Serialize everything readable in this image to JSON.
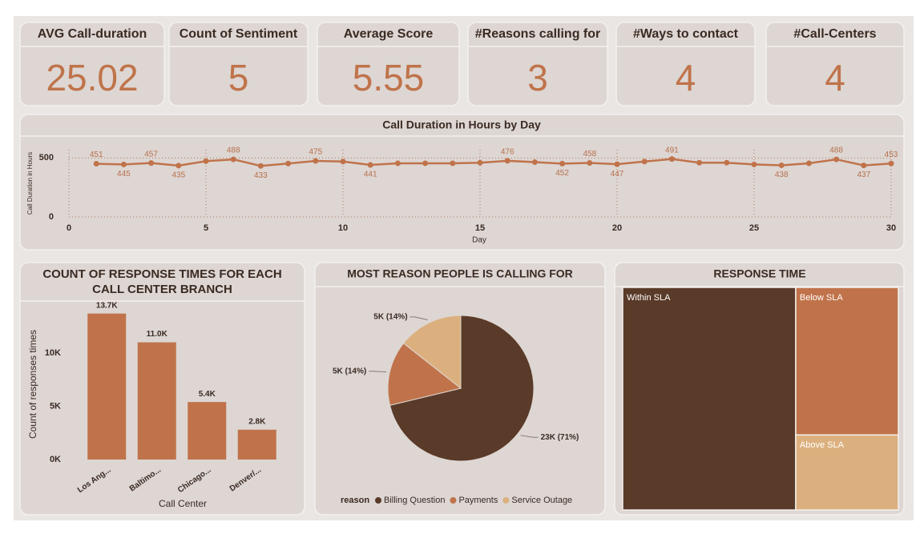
{
  "cards": [
    {
      "title": "AVG Call-duration",
      "value": 25.02
    },
    {
      "title": "Count of Sentiment",
      "value": 5
    },
    {
      "title": "Average Score",
      "value": 5.55
    },
    {
      "title": "#Reasons calling for",
      "value": 3
    },
    {
      "title": "#Ways to contact",
      "value": 4
    },
    {
      "title": "#Call-Centers",
      "value": 4
    }
  ],
  "chart_data": [
    {
      "type": "line",
      "title": "Call Duration in Hours by Day",
      "x_label": "Day",
      "y_label": "Call Duration in Hours",
      "x": [
        1,
        2,
        3,
        4,
        5,
        6,
        7,
        8,
        9,
        10,
        11,
        12,
        13,
        14,
        15,
        16,
        17,
        18,
        19,
        20,
        21,
        22,
        23,
        24,
        25,
        26,
        27,
        28,
        29,
        30
      ],
      "values": [
        451,
        445,
        457,
        435,
        473,
        488,
        433,
        453,
        475,
        470,
        441,
        455,
        455,
        455,
        460,
        476,
        465,
        452,
        458,
        447,
        470,
        491,
        460,
        460,
        445,
        438,
        455,
        488,
        437,
        453
      ],
      "value_labels": [
        "451",
        "445",
        "457",
        "435",
        null,
        "488",
        "433",
        null,
        "475",
        null,
        "441",
        null,
        null,
        null,
        null,
        "476",
        null,
        "452",
        "458",
        "447",
        null,
        "491",
        null,
        null,
        null,
        "438",
        null,
        "488",
        "437",
        "453"
      ],
      "color": "#c0734a",
      "xlim": [
        0,
        30
      ],
      "xticks": [
        0,
        5,
        10,
        15,
        20,
        25,
        30
      ],
      "ylim": [
        0,
        570
      ],
      "yticks": [
        0,
        500
      ],
      "grid": true
    },
    {
      "type": "bar",
      "title": "COUNT OF RESPONSE TIMES FOR EACH CALL CENTER BRANCH",
      "x_label": "Call Center",
      "y_label": "Count of responses times",
      "categories": [
        "Los Ang...",
        "Baltimo...",
        "Chicago...",
        "Denver/..."
      ],
      "values": [
        13700,
        11000,
        5400,
        2800
      ],
      "value_labels": [
        "13.7K",
        "11.0K",
        "5.4K",
        "2.8K"
      ],
      "color": "#c0734a",
      "ylim": [
        0,
        14200
      ],
      "yticks": [
        {
          "value": 0,
          "label": "0K"
        },
        {
          "value": 5000,
          "label": "5K"
        },
        {
          "value": 10000,
          "label": "10K"
        }
      ]
    },
    {
      "type": "pie",
      "title": "MOST REASON PEOPLE IS CALLING FOR",
      "legend_title": "reason",
      "categories": [
        "Billing Question",
        "Payments",
        "Service Outage"
      ],
      "values": [
        22800,
        4600,
        4600
      ],
      "value_labels": [
        "23K (71%)",
        "5K (14%)",
        "5K (14%)"
      ],
      "colors": [
        "#5a3a28",
        "#c0734a",
        "#dcb07e"
      ],
      "legend": "bottom"
    },
    {
      "type": "treemap",
      "title": "RESPONSE TIME",
      "categories": [
        "Within SLA",
        "Below SLA",
        "Above SLA"
      ],
      "values": [
        20650,
        8120,
        4130
      ],
      "colors": [
        "#5a3a28",
        "#c0734a",
        "#dcb07e"
      ]
    }
  ]
}
